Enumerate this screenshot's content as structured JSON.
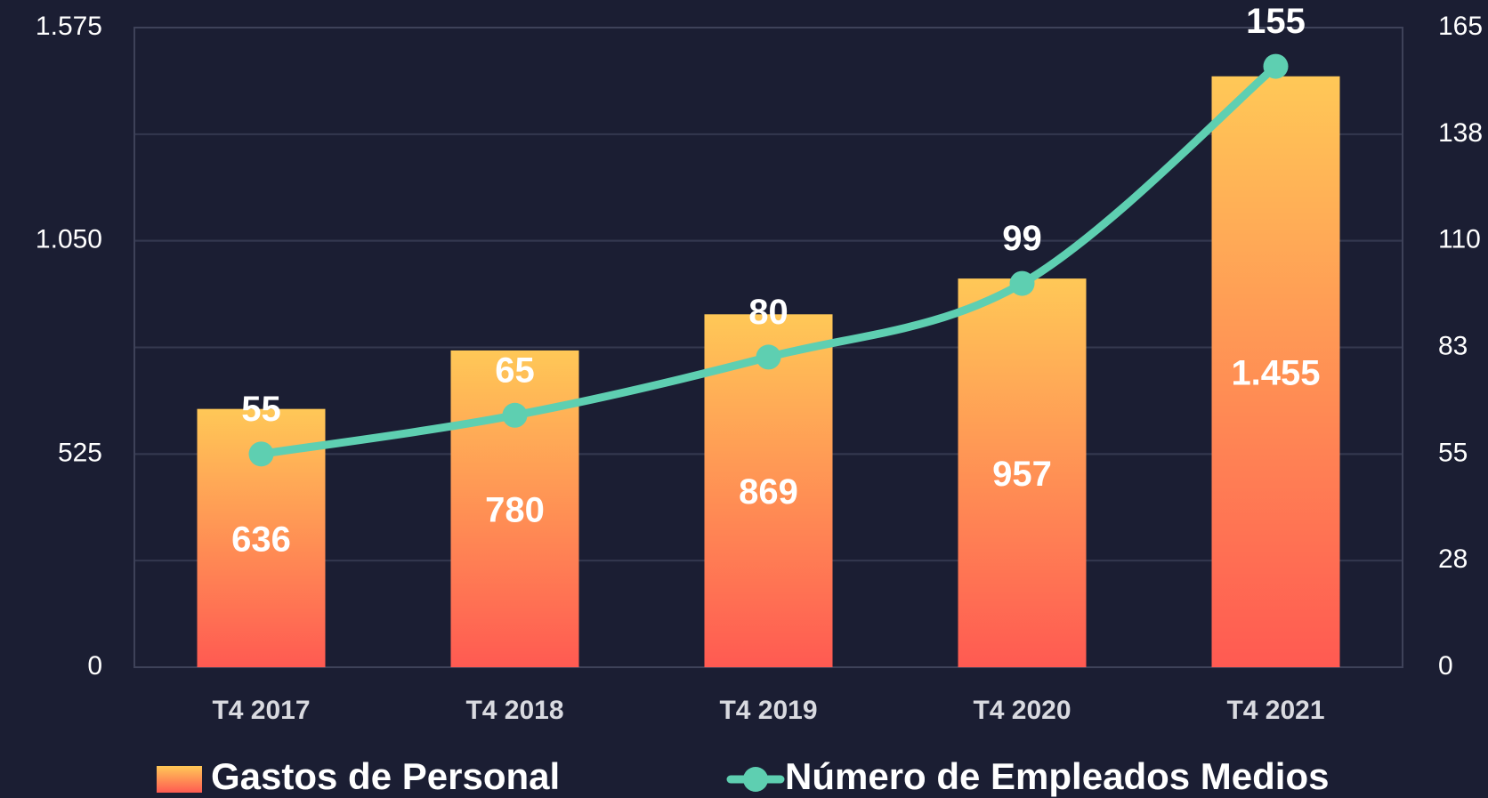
{
  "chart_data": {
    "type": "bar",
    "categories": [
      "T4 2017",
      "T4 2018",
      "T4 2019",
      "T4 2020",
      "T4 2021"
    ],
    "series": [
      {
        "name": "Gastos de Personal",
        "type": "bar",
        "color": "#ff8a55",
        "gradient": [
          "#ffc857",
          "#ff5a52"
        ],
        "values": [
          636,
          780,
          869,
          957,
          1455
        ],
        "value_labels": [
          "636",
          "780",
          "869",
          "957",
          "1.455"
        ]
      },
      {
        "name": "Número de Empleados Medios",
        "type": "line",
        "axis": "y2",
        "color": "#5ecfb1",
        "values": [
          55,
          65,
          80,
          99,
          155
        ]
      }
    ],
    "ylim": [
      0,
      1575
    ],
    "yticks": [
      0,
      525,
      {
        "value": 1050,
        "label": "1.050"
      },
      {
        "value": 1575,
        "label": "1.575"
      }
    ],
    "y2lim": [
      0,
      165
    ],
    "y2ticks": [
      0,
      {
        "value": 27.5,
        "label": "28"
      },
      55,
      {
        "value": 82.5,
        "label": "83"
      },
      110,
      {
        "value": 137.5,
        "label": "138"
      },
      165
    ],
    "grid": true,
    "legend": "bottom"
  }
}
